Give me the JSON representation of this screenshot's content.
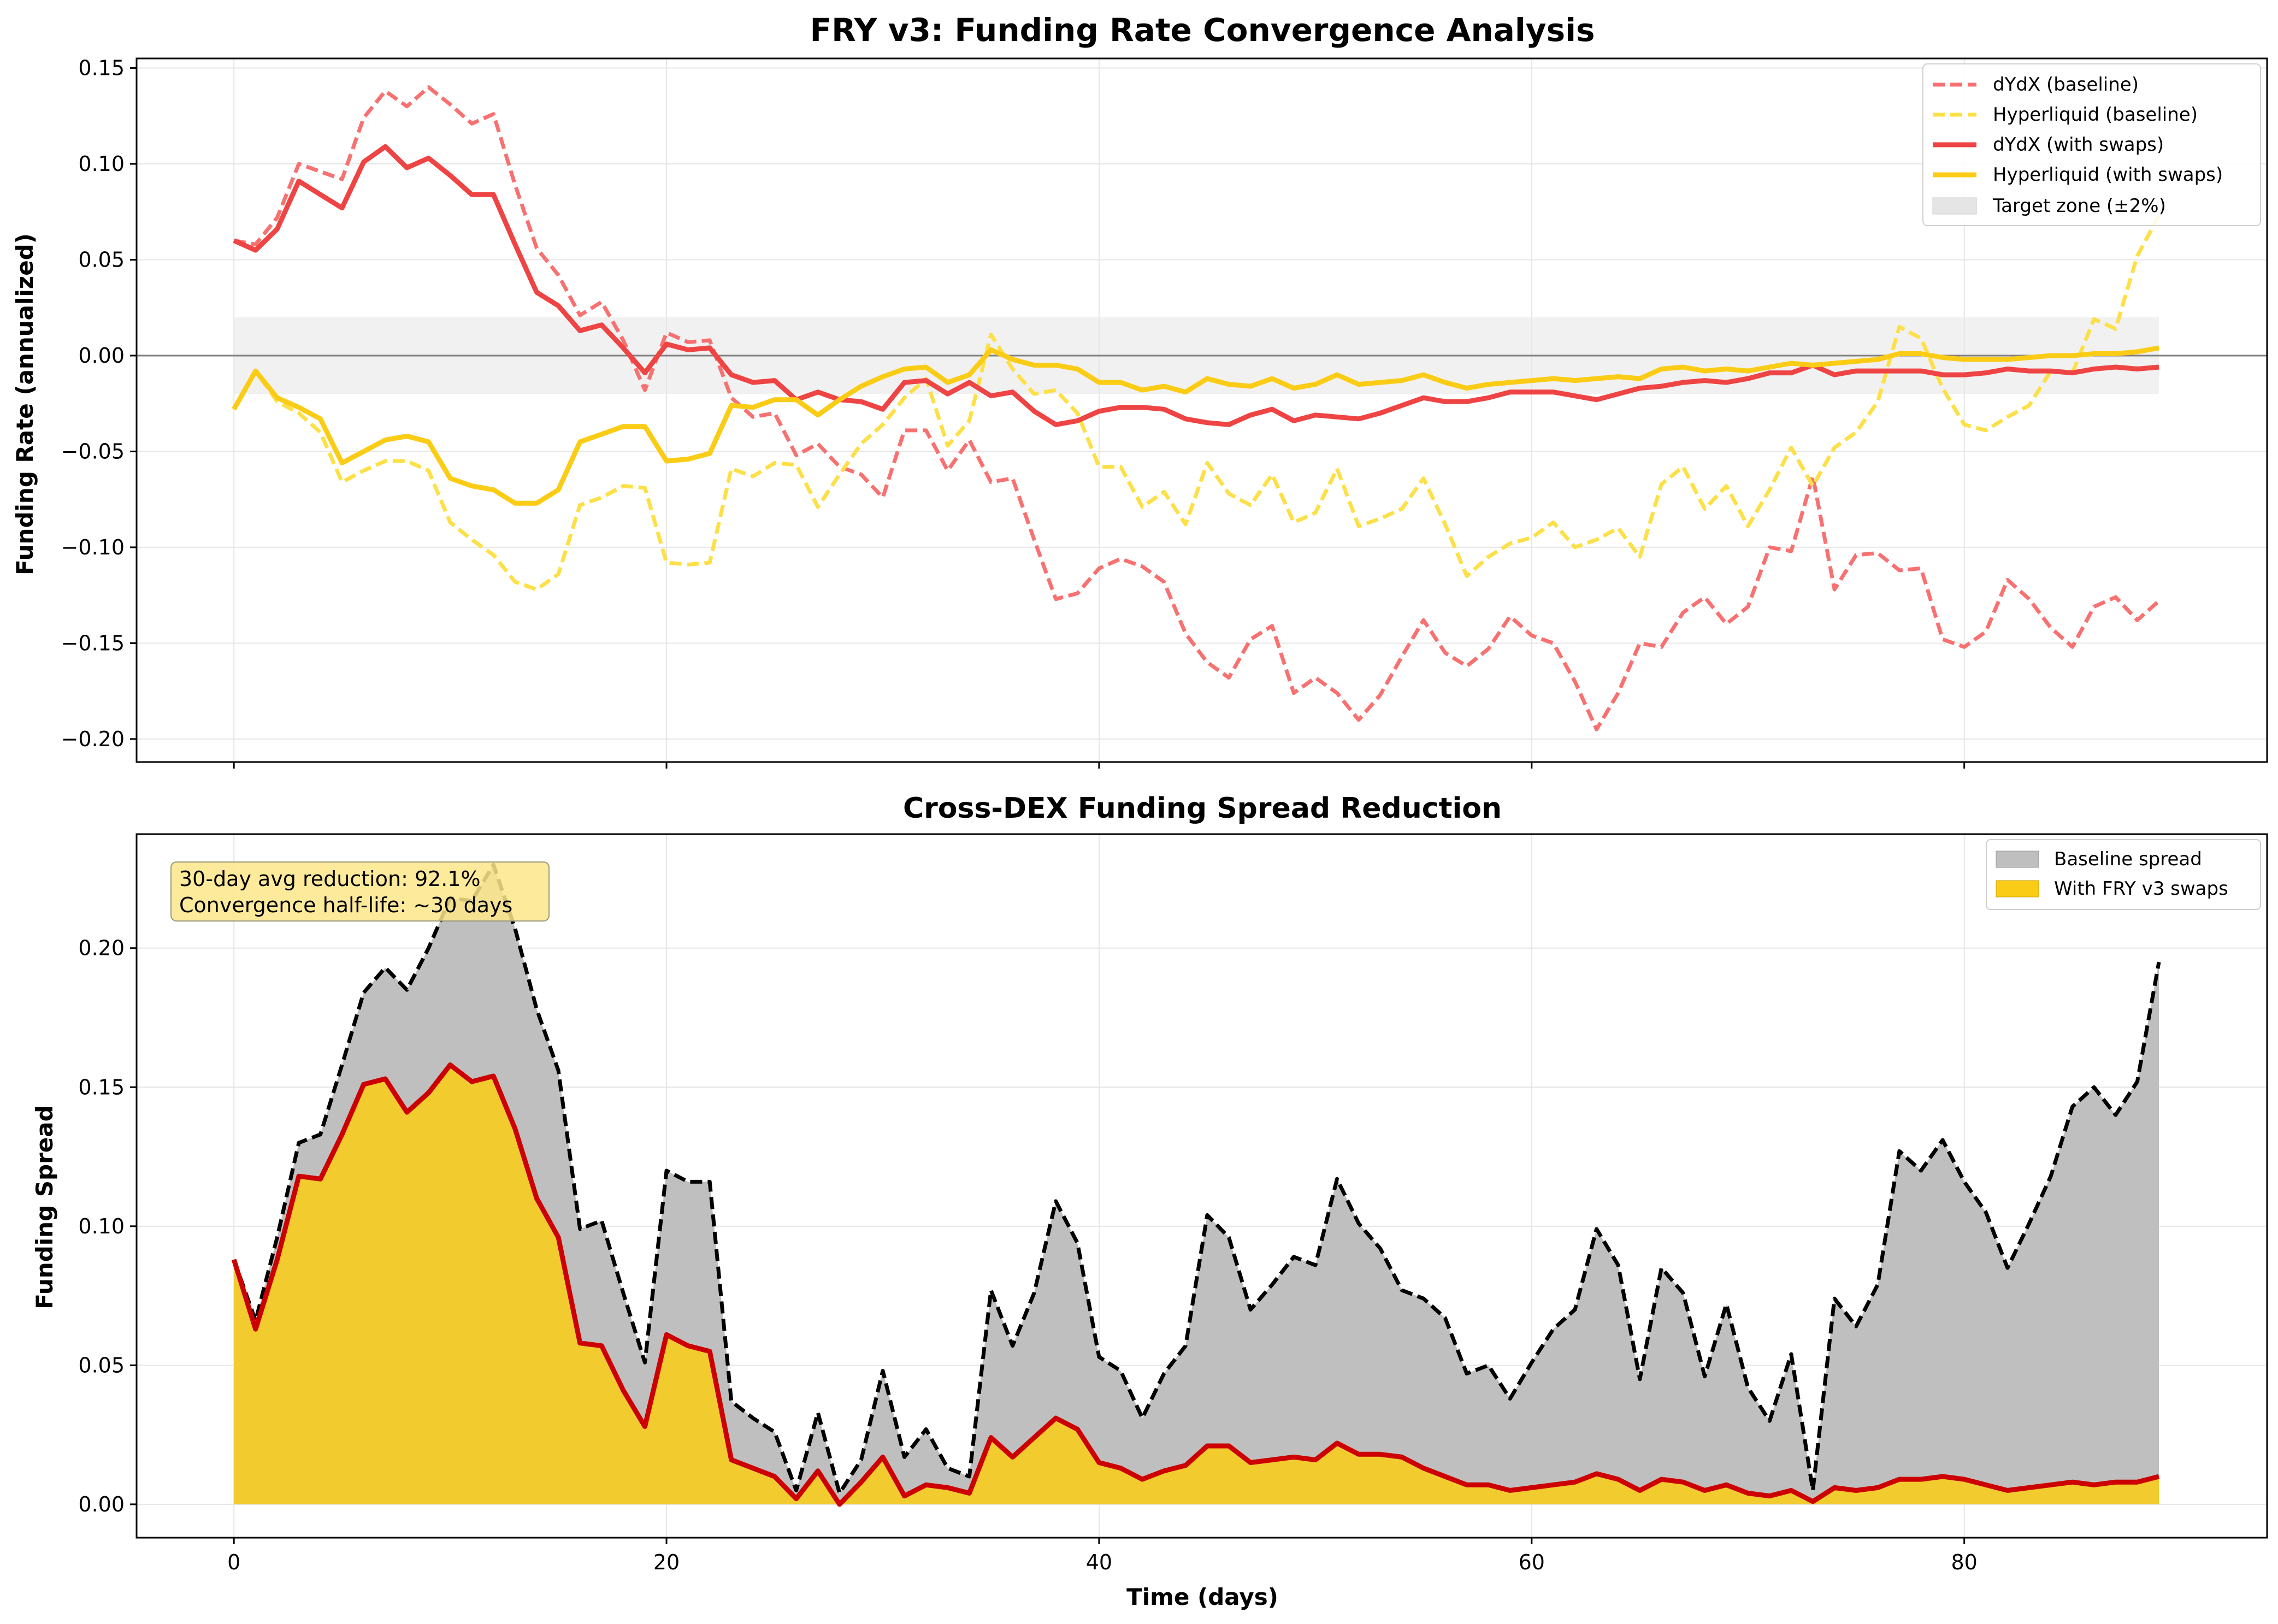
{
  "figure": {
    "background": "#ffffff"
  },
  "chart_data": [
    {
      "type": "line",
      "title": "FRY v3: Funding Rate Convergence Analysis",
      "xlabel": "",
      "ylabel": "Funding Rate (annualized)",
      "xlim": [
        -4.5,
        94
      ],
      "ylim": [
        -0.212,
        0.155
      ],
      "x_ticks": [
        0,
        20,
        40,
        60,
        80
      ],
      "x_tick_labels": [
        "",
        "",
        "",
        "",
        ""
      ],
      "y_ticks": [
        -0.2,
        -0.15,
        -0.1,
        -0.05,
        0.0,
        0.05,
        0.1,
        0.15
      ],
      "y_tick_labels": [
        "−0.20",
        "−0.15",
        "−0.10",
        "−0.05",
        "0.00",
        "0.05",
        "0.10",
        "0.15"
      ],
      "grid": true,
      "legend_position": "top-right",
      "x": [
        0,
        1,
        2,
        3,
        4,
        5,
        6,
        7,
        8,
        9,
        10,
        11,
        12,
        13,
        14,
        15,
        16,
        17,
        18,
        19,
        20,
        21,
        22,
        23,
        24,
        25,
        26,
        27,
        28,
        29,
        30,
        31,
        32,
        33,
        34,
        35,
        36,
        37,
        38,
        39,
        40,
        41,
        42,
        43,
        44,
        45,
        46,
        47,
        48,
        49,
        50,
        51,
        52,
        53,
        54,
        55,
        56,
        57,
        58,
        59,
        60,
        61,
        62,
        63,
        64,
        65,
        66,
        67,
        68,
        69,
        70,
        71,
        72,
        73,
        74,
        75,
        76,
        77,
        78,
        79,
        80,
        81,
        82,
        83,
        84,
        85,
        86,
        87,
        88,
        89
      ],
      "series": [
        {
          "name": "dYdX (baseline)",
          "color": "#f87171",
          "style": "dashed",
          "values": [
            0.06,
            0.058,
            0.072,
            0.1,
            0.096,
            0.092,
            0.124,
            0.138,
            0.13,
            0.14,
            0.131,
            0.121,
            0.126,
            0.089,
            0.056,
            0.042,
            0.021,
            0.028,
            0.008,
            -0.018,
            0.012,
            0.007,
            0.008,
            -0.022,
            -0.032,
            -0.03,
            -0.052,
            -0.046,
            -0.058,
            -0.062,
            -0.074,
            -0.039,
            -0.039,
            -0.06,
            -0.044,
            -0.066,
            -0.064,
            -0.096,
            -0.127,
            -0.124,
            -0.111,
            -0.106,
            -0.11,
            -0.118,
            -0.145,
            -0.16,
            -0.168,
            -0.148,
            -0.141,
            -0.176,
            -0.168,
            -0.176,
            -0.19,
            -0.177,
            -0.157,
            -0.138,
            -0.155,
            -0.162,
            -0.153,
            -0.136,
            -0.146,
            -0.15,
            -0.17,
            -0.195,
            -0.176,
            -0.15,
            -0.152,
            -0.134,
            -0.126,
            -0.14,
            -0.131,
            -0.1,
            -0.102,
            -0.063,
            -0.122,
            -0.104,
            -0.103,
            -0.112,
            -0.111,
            -0.148,
            -0.152,
            -0.144,
            -0.117,
            -0.127,
            -0.142,
            -0.152,
            -0.131,
            -0.126,
            -0.138,
            -0.128
          ]
        },
        {
          "name": "Hyperliquid (baseline)",
          "color": "#fde047",
          "style": "dashed",
          "values": [
            -0.028,
            -0.008,
            -0.024,
            -0.03,
            -0.04,
            -0.066,
            -0.06,
            -0.055,
            -0.055,
            -0.06,
            -0.087,
            -0.096,
            -0.104,
            -0.118,
            -0.122,
            -0.114,
            -0.078,
            -0.074,
            -0.068,
            -0.069,
            -0.108,
            -0.109,
            -0.108,
            -0.059,
            -0.063,
            -0.056,
            -0.057,
            -0.079,
            -0.062,
            -0.046,
            -0.036,
            -0.022,
            -0.012,
            -0.047,
            -0.034,
            0.011,
            -0.007,
            -0.02,
            -0.018,
            -0.03,
            -0.058,
            -0.058,
            -0.079,
            -0.071,
            -0.088,
            -0.056,
            -0.072,
            -0.078,
            -0.062,
            -0.087,
            -0.082,
            -0.059,
            -0.089,
            -0.085,
            -0.08,
            -0.064,
            -0.088,
            -0.115,
            -0.105,
            -0.098,
            -0.095,
            -0.087,
            -0.1,
            -0.096,
            -0.09,
            -0.105,
            -0.067,
            -0.058,
            -0.08,
            -0.068,
            -0.089,
            -0.07,
            -0.048,
            -0.068,
            -0.048,
            -0.04,
            -0.024,
            0.015,
            0.009,
            -0.017,
            -0.036,
            -0.039,
            -0.032,
            -0.026,
            -0.008,
            -0.009,
            0.019,
            0.014,
            0.052,
            0.073
          ]
        },
        {
          "name": "dYdX (with swaps)",
          "color": "#ef4444",
          "style": "solid",
          "values": [
            0.06,
            0.055,
            0.066,
            0.091,
            0.084,
            0.077,
            0.101,
            0.109,
            0.098,
            0.103,
            0.094,
            0.084,
            0.084,
            0.058,
            0.033,
            0.026,
            0.013,
            0.016,
            0.004,
            -0.009,
            0.006,
            0.003,
            0.004,
            -0.01,
            -0.014,
            -0.013,
            -0.023,
            -0.019,
            -0.023,
            -0.024,
            -0.028,
            -0.014,
            -0.013,
            -0.02,
            -0.014,
            -0.021,
            -0.019,
            -0.029,
            -0.036,
            -0.034,
            -0.029,
            -0.027,
            -0.027,
            -0.028,
            -0.033,
            -0.035,
            -0.036,
            -0.031,
            -0.028,
            -0.034,
            -0.031,
            -0.032,
            -0.033,
            -0.03,
            -0.026,
            -0.022,
            -0.024,
            -0.024,
            -0.022,
            -0.019,
            -0.019,
            -0.019,
            -0.021,
            -0.023,
            -0.02,
            -0.017,
            -0.016,
            -0.014,
            -0.013,
            -0.014,
            -0.012,
            -0.009,
            -0.009,
            -0.005,
            -0.01,
            -0.008,
            -0.008,
            -0.008,
            -0.008,
            -0.01,
            -0.01,
            -0.009,
            -0.007,
            -0.008,
            -0.008,
            -0.009,
            -0.007,
            -0.006,
            -0.007,
            -0.006
          ]
        },
        {
          "name": "Hyperliquid (with swaps)",
          "color": "#facc15",
          "style": "solid",
          "values": [
            -0.028,
            -0.008,
            -0.022,
            -0.027,
            -0.033,
            -0.056,
            -0.05,
            -0.044,
            -0.042,
            -0.045,
            -0.064,
            -0.068,
            -0.07,
            -0.077,
            -0.077,
            -0.07,
            -0.045,
            -0.041,
            -0.037,
            -0.037,
            -0.055,
            -0.054,
            -0.051,
            -0.026,
            -0.027,
            -0.023,
            -0.023,
            -0.031,
            -0.023,
            -0.016,
            -0.011,
            -0.007,
            -0.006,
            -0.014,
            -0.01,
            0.003,
            -0.002,
            -0.005,
            -0.005,
            -0.007,
            -0.014,
            -0.014,
            -0.018,
            -0.016,
            -0.019,
            -0.012,
            -0.015,
            -0.016,
            -0.012,
            -0.017,
            -0.015,
            -0.01,
            -0.015,
            -0.014,
            -0.013,
            -0.01,
            -0.014,
            -0.017,
            -0.015,
            -0.014,
            -0.013,
            -0.012,
            -0.013,
            -0.012,
            -0.011,
            -0.012,
            -0.007,
            -0.006,
            -0.008,
            -0.007,
            -0.008,
            -0.006,
            -0.004,
            -0.005,
            -0.004,
            -0.003,
            -0.002,
            0.001,
            0.001,
            -0.001,
            -0.002,
            -0.002,
            -0.002,
            -0.001,
            0.0,
            0.0,
            0.001,
            0.001,
            0.002,
            0.004
          ]
        }
      ],
      "reference_line": {
        "y": 0.0,
        "color": "#808080"
      },
      "band": {
        "name": "Target zone (±2%)",
        "y_min": -0.02,
        "y_max": 0.02,
        "x_min": 0,
        "x_max": 89,
        "color": "#e5e5e5"
      }
    },
    {
      "type": "area",
      "title": "Cross-DEX Funding Spread Reduction",
      "xlabel": "Time (days)",
      "ylabel": "Funding Spread",
      "xlim": [
        -4.5,
        94
      ],
      "ylim": [
        -0.012,
        0.241
      ],
      "x_ticks": [
        0,
        20,
        40,
        60,
        80
      ],
      "x_tick_labels": [
        "0",
        "20",
        "40",
        "60",
        "80"
      ],
      "y_ticks": [
        0.0,
        0.05,
        0.1,
        0.15,
        0.2
      ],
      "y_tick_labels": [
        "0.00",
        "0.05",
        "0.10",
        "0.15",
        "0.20"
      ],
      "grid": true,
      "legend_position": "top-right",
      "annotation": [
        "30-day avg reduction: 92.1%",
        "Convergence half-life: ~30 days"
      ],
      "x": [
        0,
        1,
        2,
        3,
        4,
        5,
        6,
        7,
        8,
        9,
        10,
        11,
        12,
        13,
        14,
        15,
        16,
        17,
        18,
        19,
        20,
        21,
        22,
        23,
        24,
        25,
        26,
        27,
        28,
        29,
        30,
        31,
        32,
        33,
        34,
        35,
        36,
        37,
        38,
        39,
        40,
        41,
        42,
        43,
        44,
        45,
        46,
        47,
        48,
        49,
        50,
        51,
        52,
        53,
        54,
        55,
        56,
        57,
        58,
        59,
        60,
        61,
        62,
        63,
        64,
        65,
        66,
        67,
        68,
        69,
        70,
        71,
        72,
        73,
        74,
        75,
        76,
        77,
        78,
        79,
        80,
        81,
        82,
        83,
        84,
        85,
        86,
        87,
        88,
        89
      ],
      "series": [
        {
          "name": "Baseline spread",
          "fill": "#bfbfbf",
          "line_color": "#000000",
          "style": "dashed",
          "values": [
            0.088,
            0.066,
            0.096,
            0.13,
            0.133,
            0.158,
            0.184,
            0.193,
            0.185,
            0.2,
            0.218,
            0.217,
            0.23,
            0.207,
            0.178,
            0.156,
            0.099,
            0.102,
            0.076,
            0.051,
            0.12,
            0.116,
            0.116,
            0.037,
            0.031,
            0.026,
            0.005,
            0.033,
            0.004,
            0.016,
            0.048,
            0.017,
            0.027,
            0.013,
            0.01,
            0.077,
            0.057,
            0.076,
            0.109,
            0.094,
            0.053,
            0.048,
            0.031,
            0.047,
            0.057,
            0.104,
            0.096,
            0.07,
            0.079,
            0.089,
            0.086,
            0.117,
            0.101,
            0.092,
            0.077,
            0.074,
            0.067,
            0.047,
            0.05,
            0.038,
            0.051,
            0.063,
            0.07,
            0.099,
            0.086,
            0.045,
            0.085,
            0.076,
            0.046,
            0.072,
            0.042,
            0.03,
            0.054,
            0.005,
            0.074,
            0.064,
            0.079,
            0.127,
            0.12,
            0.131,
            0.116,
            0.105,
            0.085,
            0.101,
            0.118,
            0.143,
            0.15,
            0.14,
            0.152,
            0.195
          ]
        },
        {
          "name": "With FRY v3 swaps",
          "fill": "#facc15",
          "line_color": "#cc0000",
          "style": "solid",
          "values": [
            0.088,
            0.063,
            0.088,
            0.118,
            0.117,
            0.133,
            0.151,
            0.153,
            0.141,
            0.148,
            0.158,
            0.152,
            0.154,
            0.135,
            0.11,
            0.096,
            0.058,
            0.057,
            0.041,
            0.028,
            0.061,
            0.057,
            0.055,
            0.016,
            0.013,
            0.01,
            0.002,
            0.012,
            0.0,
            0.008,
            0.017,
            0.003,
            0.007,
            0.006,
            0.004,
            0.024,
            0.017,
            0.024,
            0.031,
            0.027,
            0.015,
            0.013,
            0.009,
            0.012,
            0.014,
            0.021,
            0.021,
            0.015,
            0.016,
            0.017,
            0.016,
            0.022,
            0.018,
            0.018,
            0.017,
            0.013,
            0.01,
            0.007,
            0.007,
            0.005,
            0.006,
            0.007,
            0.008,
            0.011,
            0.009,
            0.005,
            0.009,
            0.008,
            0.005,
            0.007,
            0.004,
            0.003,
            0.005,
            0.001,
            0.006,
            0.005,
            0.006,
            0.009,
            0.009,
            0.01,
            0.009,
            0.007,
            0.005,
            0.006,
            0.007,
            0.008,
            0.007,
            0.008,
            0.008,
            0.01
          ]
        }
      ]
    }
  ]
}
